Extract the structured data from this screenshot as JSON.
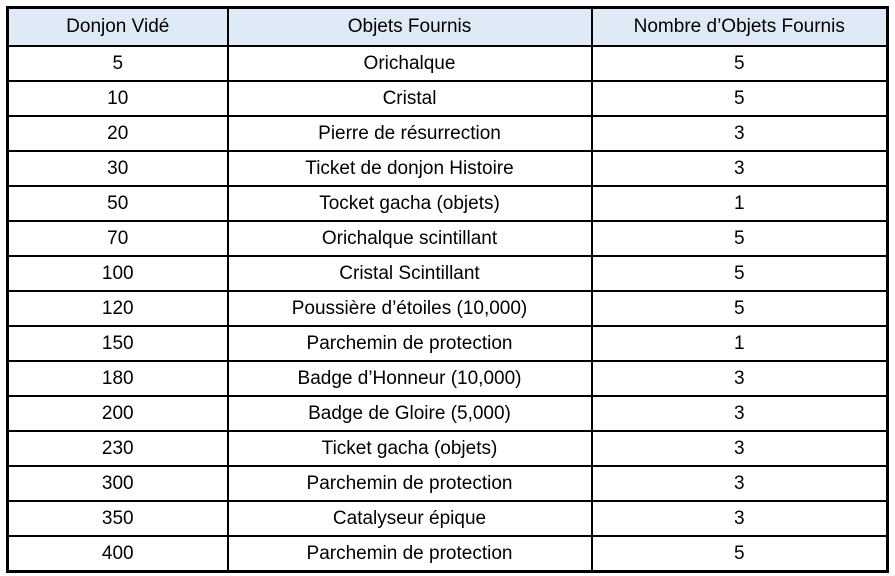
{
  "table": {
    "name": "dungeon-rewards-table",
    "columns": [
      "Donjon Vidé",
      "Objets Fournis",
      "Nombre d’Objets Fournis"
    ],
    "rows": [
      [
        "5",
        "Orichalque",
        "5"
      ],
      [
        "10",
        "Cristal",
        "5"
      ],
      [
        "20",
        "Pierre de résurrection",
        "3"
      ],
      [
        "30",
        "Ticket de donjon Histoire",
        "3"
      ],
      [
        "50",
        "Tocket gacha (objets)",
        "1"
      ],
      [
        "70",
        "Orichalque scintillant",
        "5"
      ],
      [
        "100",
        "Cristal Scintillant",
        "5"
      ],
      [
        "120",
        "Poussière d’étoiles (10,000)",
        "5"
      ],
      [
        "150",
        "Parchemin de protection",
        "1"
      ],
      [
        "180",
        "Badge d’Honneur (10,000)",
        "3"
      ],
      [
        "200",
        "Badge de Gloire (5,000)",
        "3"
      ],
      [
        "230",
        "Ticket gacha (objets)",
        "3"
      ],
      [
        "300",
        "Parchemin de protection",
        "3"
      ],
      [
        "350",
        "Catalyseur épique",
        "3"
      ],
      [
        "400",
        "Parchemin de protection",
        "5"
      ]
    ],
    "colors": {
      "header_bg": "#deeaf6",
      "border": "#000000",
      "text": "#000000"
    }
  }
}
